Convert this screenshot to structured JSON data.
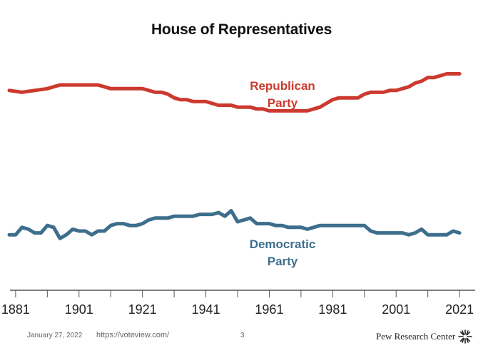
{
  "chart_data": {
    "type": "line",
    "title": "House of Representatives",
    "x_ticks": [
      "1881",
      "1901",
      "1921",
      "1941",
      "1961",
      "1981",
      "2001",
      "2021"
    ],
    "xlim": [
      1879,
      2023
    ],
    "series": [
      {
        "name": "Republican Party",
        "color": "#cc3a2f",
        "x": [
          1879,
          1883,
          1887,
          1891,
          1893,
          1895,
          1899,
          1903,
          1907,
          1909,
          1911,
          1913,
          1915,
          1917,
          1919,
          1921,
          1923,
          1925,
          1927,
          1929,
          1931,
          1933,
          1935,
          1937,
          1939,
          1941,
          1943,
          1945,
          1947,
          1949,
          1951,
          1953,
          1955,
          1957,
          1959,
          1961,
          1963,
          1965,
          1967,
          1969,
          1971,
          1973,
          1975,
          1977,
          1979,
          1981,
          1983,
          1985,
          1987,
          1989,
          1991,
          1993,
          1995,
          1997,
          1999,
          2001,
          2003,
          2005,
          2007,
          2009,
          2011,
          2013,
          2015,
          2017,
          2019,
          2021
        ],
        "values": [
          0.46,
          0.45,
          0.46,
          0.47,
          0.48,
          0.49,
          0.49,
          0.49,
          0.49,
          0.48,
          0.47,
          0.47,
          0.47,
          0.47,
          0.47,
          0.47,
          0.46,
          0.45,
          0.45,
          0.44,
          0.42,
          0.41,
          0.41,
          0.4,
          0.4,
          0.4,
          0.39,
          0.38,
          0.38,
          0.38,
          0.37,
          0.37,
          0.37,
          0.36,
          0.36,
          0.35,
          0.35,
          0.35,
          0.35,
          0.35,
          0.35,
          0.35,
          0.36,
          0.37,
          0.39,
          0.41,
          0.42,
          0.42,
          0.42,
          0.42,
          0.44,
          0.45,
          0.45,
          0.45,
          0.46,
          0.46,
          0.47,
          0.48,
          0.5,
          0.51,
          0.53,
          0.53,
          0.54,
          0.55,
          0.55,
          0.55
        ]
      },
      {
        "name": "Democratic Party",
        "color": "#3d6e8c",
        "x": [
          1879,
          1881,
          1883,
          1885,
          1887,
          1889,
          1891,
          1893,
          1895,
          1897,
          1899,
          1901,
          1903,
          1905,
          1907,
          1909,
          1911,
          1913,
          1915,
          1917,
          1919,
          1921,
          1923,
          1925,
          1927,
          1929,
          1931,
          1933,
          1935,
          1937,
          1939,
          1941,
          1943,
          1945,
          1947,
          1949,
          1951,
          1953,
          1955,
          1957,
          1959,
          1961,
          1963,
          1965,
          1967,
          1969,
          1971,
          1973,
          1975,
          1977,
          1979,
          1981,
          1983,
          1985,
          1987,
          1989,
          1991,
          1993,
          1995,
          1997,
          1999,
          2001,
          2003,
          2005,
          2007,
          2009,
          2011,
          2013,
          2015,
          2017,
          2019,
          2021
        ],
        "values": [
          -0.32,
          -0.32,
          -0.28,
          -0.29,
          -0.31,
          -0.31,
          -0.27,
          -0.28,
          -0.34,
          -0.32,
          -0.29,
          -0.3,
          -0.3,
          -0.32,
          -0.3,
          -0.3,
          -0.27,
          -0.26,
          -0.26,
          -0.27,
          -0.27,
          -0.26,
          -0.24,
          -0.23,
          -0.23,
          -0.23,
          -0.22,
          -0.22,
          -0.22,
          -0.22,
          -0.21,
          -0.21,
          -0.21,
          -0.2,
          -0.22,
          -0.19,
          -0.25,
          -0.24,
          -0.23,
          -0.26,
          -0.26,
          -0.26,
          -0.27,
          -0.27,
          -0.28,
          -0.28,
          -0.28,
          -0.29,
          -0.28,
          -0.27,
          -0.27,
          -0.27,
          -0.27,
          -0.27,
          -0.27,
          -0.27,
          -0.27,
          -0.3,
          -0.31,
          -0.31,
          -0.31,
          -0.31,
          -0.31,
          -0.32,
          -0.31,
          -0.29,
          -0.32,
          -0.32,
          -0.32,
          -0.32,
          -0.3,
          -0.31
        ]
      }
    ],
    "annotations": [
      {
        "series": "Republican Party",
        "lines": [
          "Republican",
          "Party"
        ]
      },
      {
        "series": "Democratic Party",
        "lines": [
          "Democratic",
          "Party"
        ]
      }
    ],
    "ylim": [
      -0.62,
      0.71
    ],
    "grid": false
  },
  "footer": {
    "date": "January 27, 2022",
    "url": "https://voteview.com/",
    "page": "3",
    "brand": "Pew Research Center"
  }
}
